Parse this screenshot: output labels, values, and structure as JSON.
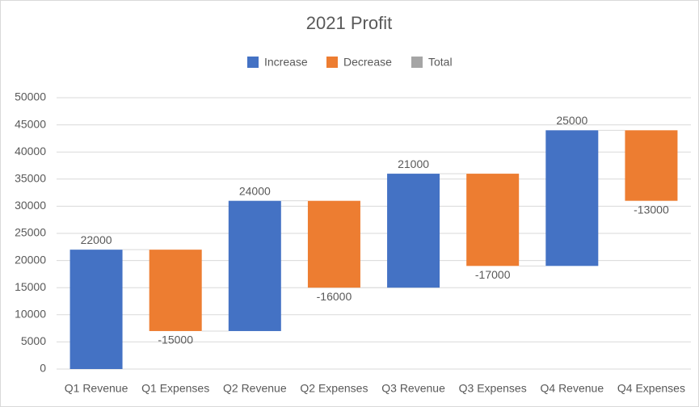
{
  "chart_data": {
    "type": "waterfall",
    "title": "2021 Profit",
    "categories": [
      "Q1 Revenue",
      "Q1 Expenses",
      "Q2 Revenue",
      "Q2 Expenses",
      "Q3 Revenue",
      "Q3 Expenses",
      "Q4 Revenue",
      "Q4 Expenses"
    ],
    "values": [
      22000,
      -15000,
      24000,
      -16000,
      21000,
      -17000,
      25000,
      -13000
    ],
    "legend": [
      {
        "name": "Increase",
        "color": "#4472c4"
      },
      {
        "name": "Decrease",
        "color": "#ed7d31"
      },
      {
        "name": "Total",
        "color": "#a5a5a5"
      }
    ],
    "ylim": [
      0,
      50000
    ],
    "yticks": [
      0,
      5000,
      10000,
      15000,
      20000,
      25000,
      30000,
      35000,
      40000,
      45000,
      50000
    ],
    "grid": true
  }
}
